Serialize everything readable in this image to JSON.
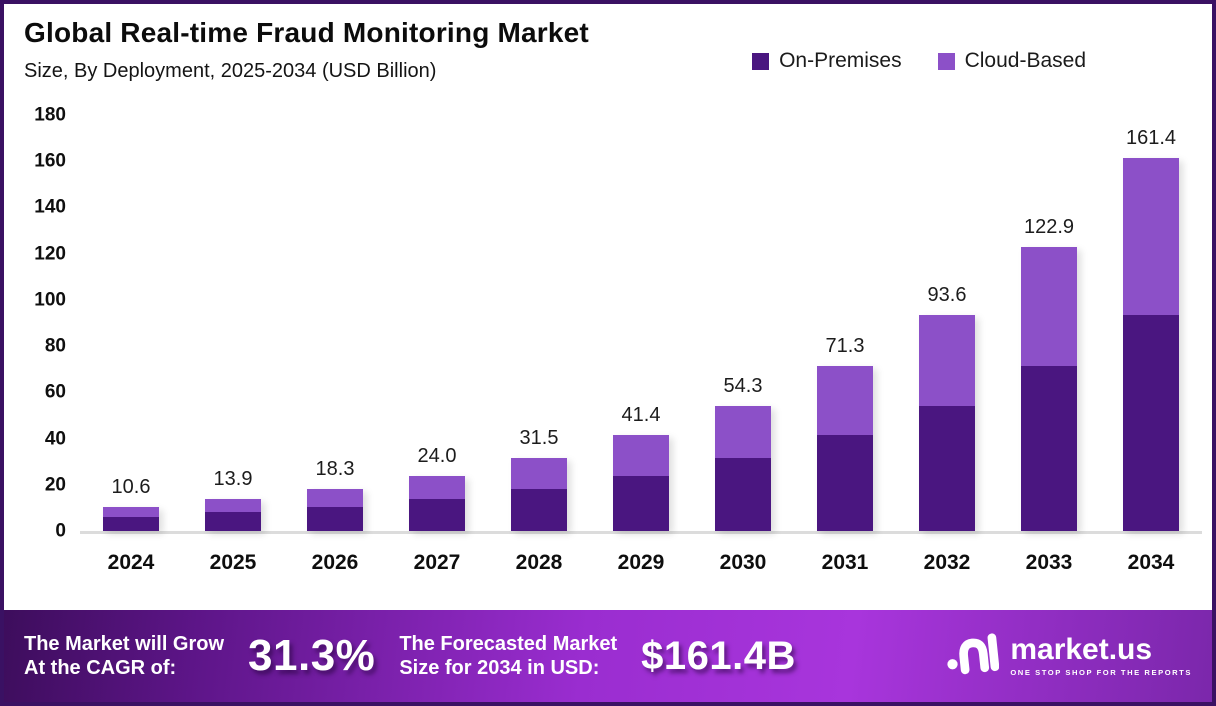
{
  "header": {
    "title": "Global Real-time Fraud Monitoring Market",
    "subtitle": "Size, By Deployment, 2025-2034 (USD Billion)"
  },
  "legend": [
    {
      "label": "On-Premises",
      "color": "#4a1680"
    },
    {
      "label": "Cloud-Based",
      "color": "#8c50c8"
    }
  ],
  "chart_data": {
    "type": "bar",
    "stacked": true,
    "title": "Global Real-time Fraud Monitoring Market Size, By Deployment, 2025-2034 (USD Billion)",
    "categories": [
      "2024",
      "2025",
      "2026",
      "2027",
      "2028",
      "2029",
      "2030",
      "2031",
      "2032",
      "2033",
      "2034"
    ],
    "series": [
      {
        "name": "On-Premises",
        "color": "#4a1680",
        "values": [
          6.1,
          8.1,
          10.6,
          13.9,
          18.3,
          24.0,
          31.5,
          41.4,
          54.3,
          71.3,
          93.6
        ]
      },
      {
        "name": "Cloud-Based",
        "color": "#8c50c8",
        "values": [
          4.5,
          5.8,
          7.7,
          10.1,
          13.2,
          17.4,
          22.8,
          29.9,
          39.3,
          51.6,
          67.8
        ]
      }
    ],
    "totals": [
      10.6,
      13.9,
      18.3,
      24.0,
      31.5,
      41.4,
      54.3,
      71.3,
      93.6,
      122.9,
      161.4
    ],
    "total_labels": [
      "10.6",
      "13.9",
      "18.3",
      "24.0",
      "31.5",
      "41.4",
      "54.3",
      "71.3",
      "93.6",
      "122.9",
      "161.4"
    ],
    "xlabel": "",
    "ylabel": "",
    "ylim": [
      0,
      180
    ],
    "yticks": [
      180,
      160,
      140,
      120,
      100,
      80,
      60,
      40,
      20,
      0
    ],
    "grid": false,
    "legend_position": "top-right"
  },
  "footer": {
    "cagr_label": "The Market will Grow\nAt the CAGR of:",
    "cagr_value": "31.3%",
    "forecast_label": "The Forecasted Market\nSize for 2034 in USD:",
    "forecast_value": "$161.4B",
    "brand": "market.us",
    "brand_tagline": "ONE STOP SHOP FOR THE REPORTS",
    "brand_icon": "market-us-logo-icon"
  },
  "colors": {
    "border": "#3a1163",
    "baseline": "#dcdcdc",
    "banner_gradient": [
      "#3d0d5c",
      "#9a2dd0",
      "#7b27ab"
    ]
  }
}
